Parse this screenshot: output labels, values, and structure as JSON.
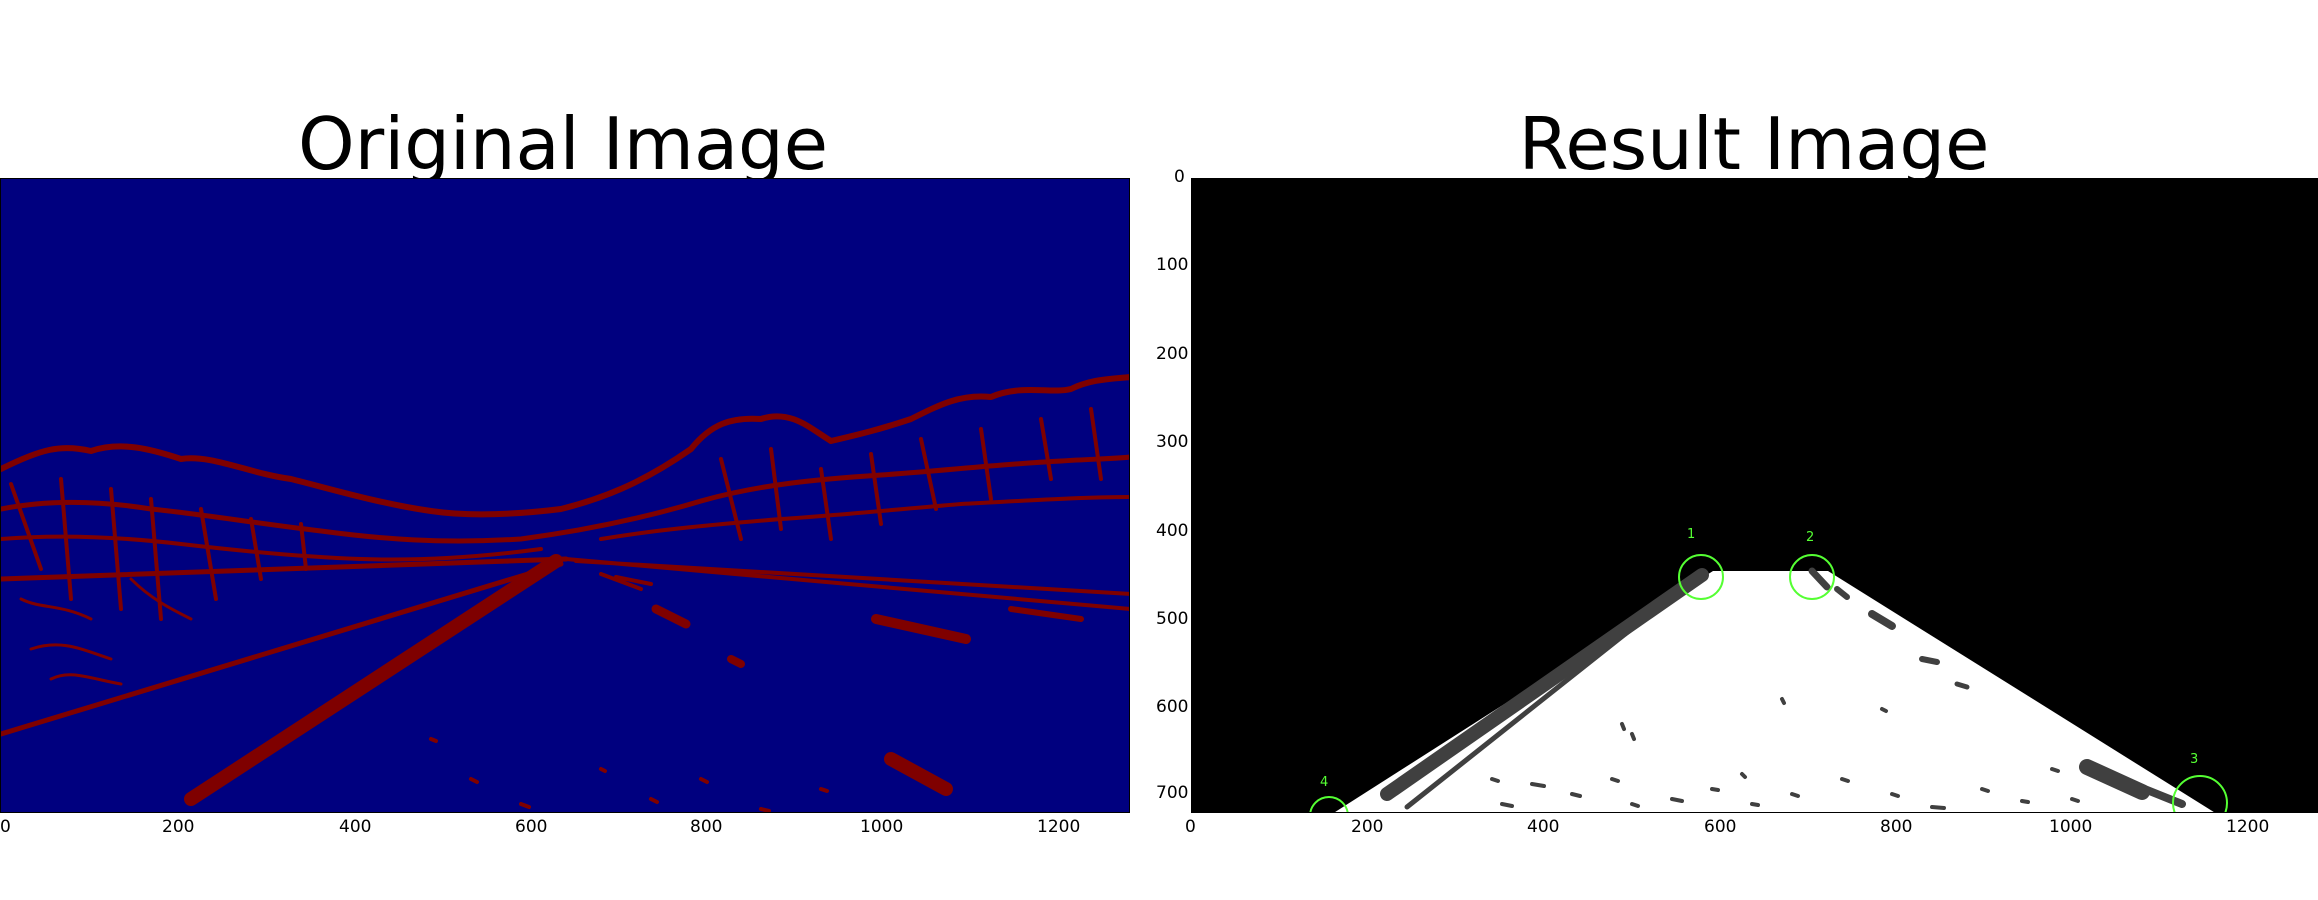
{
  "left_panel": {
    "title": "Original Image",
    "x_ticks": [
      "0",
      "200",
      "400",
      "600",
      "800",
      "1000",
      "1200"
    ],
    "colors": {
      "background": "#00007f",
      "edges": "#7f0000"
    }
  },
  "right_panel": {
    "title": "Result Image",
    "x_ticks": [
      "0",
      "200",
      "400",
      "600",
      "800",
      "1000",
      "1200"
    ],
    "y_ticks": [
      "0",
      "100",
      "200",
      "300",
      "400",
      "500",
      "600",
      "700"
    ],
    "markers": [
      "1",
      "2",
      "3",
      "4"
    ],
    "colors": {
      "background": "#000000",
      "region": "#ffffff",
      "lanes": "#404040",
      "marker": "#55ff33"
    }
  }
}
